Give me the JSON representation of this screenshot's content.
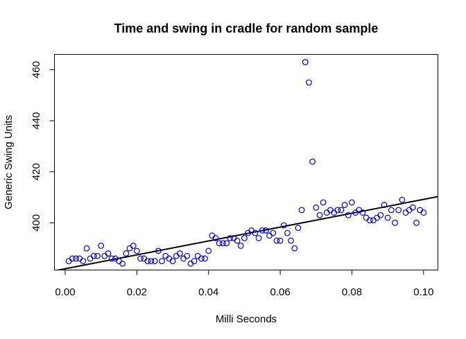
{
  "chart_data": {
    "type": "scatter",
    "title": "Time and swing in cradle for random sample",
    "xlabel": "Milli Seconds",
    "ylabel": "Generic Swing Units",
    "xlim": [
      -0.003,
      0.104
    ],
    "ylim": [
      381.5,
      466
    ],
    "xticks": [
      0.0,
      0.02,
      0.04,
      0.06,
      0.08,
      0.1
    ],
    "xtick_labels": [
      "0.00",
      "0.02",
      "0.04",
      "0.06",
      "0.08",
      "0.10"
    ],
    "yticks": [
      400,
      420,
      440,
      460
    ],
    "ytick_labels": [
      "400",
      "420",
      "440",
      "460"
    ],
    "grid": false,
    "point_color": "#0000cc",
    "line_color": "#000000",
    "series": [
      {
        "x": [
          0.001,
          0.002,
          0.003,
          0.004,
          0.005,
          0.006,
          0.007,
          0.008,
          0.009,
          0.01,
          0.011,
          0.012,
          0.013,
          0.014,
          0.015,
          0.016,
          0.017,
          0.018,
          0.019,
          0.02,
          0.021,
          0.022,
          0.023,
          0.024,
          0.025,
          0.026,
          0.027,
          0.028,
          0.029,
          0.03,
          0.031,
          0.032,
          0.033,
          0.034,
          0.035,
          0.036,
          0.037,
          0.038,
          0.039,
          0.04,
          0.041,
          0.042,
          0.043,
          0.044,
          0.045,
          0.046,
          0.047,
          0.048,
          0.049,
          0.05,
          0.051,
          0.052,
          0.053,
          0.054,
          0.055,
          0.056,
          0.057,
          0.058,
          0.059,
          0.06,
          0.061,
          0.062,
          0.063,
          0.064,
          0.065,
          0.066,
          0.067,
          0.068,
          0.069,
          0.07,
          0.071,
          0.072,
          0.073,
          0.074,
          0.075,
          0.076,
          0.077,
          0.078,
          0.079,
          0.08,
          0.081,
          0.082,
          0.083,
          0.084,
          0.085,
          0.086,
          0.087,
          0.088,
          0.089,
          0.09,
          0.091,
          0.092,
          0.093,
          0.094,
          0.095,
          0.096,
          0.097,
          0.098,
          0.099,
          0.1
        ],
        "y": [
          385,
          386,
          386,
          386,
          385,
          390,
          386,
          387,
          387,
          391,
          387,
          388,
          386,
          386,
          385,
          384,
          388,
          390,
          391,
          389,
          386,
          386,
          385,
          385,
          385,
          389,
          385,
          387,
          386,
          385,
          387,
          388,
          386,
          387,
          384,
          385,
          387,
          386,
          386,
          389,
          395,
          394,
          392,
          392,
          392,
          394,
          394,
          393,
          391,
          394,
          396,
          397,
          396,
          394,
          397,
          397,
          395,
          396,
          393,
          393,
          399,
          396,
          393,
          390,
          398,
          405,
          463,
          455,
          424,
          406,
          403,
          408,
          404,
          405,
          404,
          405,
          405,
          407,
          403,
          408,
          404,
          405,
          404,
          402,
          401,
          401,
          402,
          403,
          407,
          402,
          405,
          400,
          405,
          409,
          404,
          405,
          406,
          400,
          405,
          404
        ]
      }
    ],
    "fit_line": {
      "intercept": 382.0,
      "slope": 272.0
    }
  }
}
